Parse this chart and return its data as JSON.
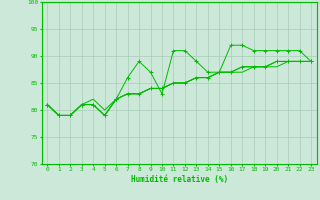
{
  "xlabel": "Humidité relative (%)",
  "bg_color": "#cce8d8",
  "grid_color": "#aaccbb",
  "line_color": "#00bb00",
  "x_values": [
    0,
    1,
    2,
    3,
    4,
    5,
    6,
    7,
    8,
    9,
    10,
    11,
    12,
    13,
    14,
    15,
    16,
    17,
    18,
    19,
    20,
    21,
    22,
    23
  ],
  "line1": [
    81,
    79,
    79,
    81,
    81,
    79,
    82,
    86,
    89,
    87,
    83,
    91,
    91,
    89,
    87,
    87,
    92,
    92,
    91,
    91,
    91,
    91,
    91,
    89
  ],
  "line2": [
    81,
    79,
    79,
    81,
    81,
    79,
    82,
    83,
    83,
    84,
    84,
    85,
    85,
    86,
    86,
    87,
    87,
    88,
    88,
    88,
    89,
    89,
    89,
    89
  ],
  "line3": [
    81,
    79,
    79,
    81,
    81,
    79,
    82,
    83,
    83,
    84,
    84,
    85,
    85,
    86,
    86,
    87,
    87,
    87,
    88,
    88,
    88,
    89,
    89,
    89
  ],
  "line4": [
    81,
    79,
    79,
    81,
    82,
    80,
    82,
    83,
    83,
    84,
    84,
    85,
    85,
    86,
    86,
    87,
    87,
    88,
    88,
    88,
    89,
    89,
    89,
    89
  ],
  "ylim": [
    70,
    100
  ],
  "xlim": [
    -0.5,
    23.5
  ],
  "yticks": [
    70,
    75,
    80,
    85,
    90,
    95,
    100
  ],
  "xticks": [
    0,
    1,
    2,
    3,
    4,
    5,
    6,
    7,
    8,
    9,
    10,
    11,
    12,
    13,
    14,
    15,
    16,
    17,
    18,
    19,
    20,
    21,
    22,
    23
  ]
}
